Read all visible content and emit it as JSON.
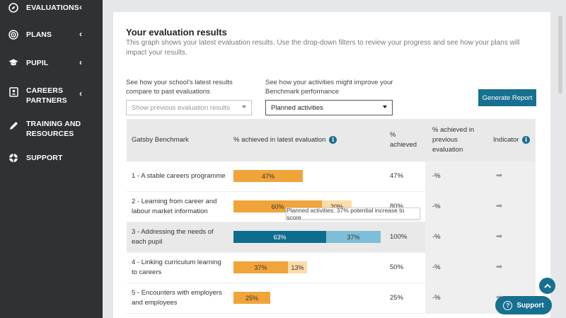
{
  "sidebar": {
    "items": [
      {
        "label": "EVALUATIONS",
        "icon": "compass-icon"
      },
      {
        "label": "PLANS",
        "icon": "target-icon"
      },
      {
        "label": "PUPIL",
        "icon": "graduation-cap-icon"
      },
      {
        "label_line1": "CAREERS",
        "label_line2": "PARTNERS",
        "icon": "id-card-icon"
      },
      {
        "label_line1": "TRAINING AND",
        "label_line2": "RESOURCES",
        "icon": "pencil-icon"
      },
      {
        "label": "SUPPORT",
        "icon": "lifebuoy-icon"
      }
    ],
    "chevron": "‹"
  },
  "main": {
    "title": "Your evaluation results",
    "description": "This graph shows your latest evaluation results. Use the drop-down filters to review your progress and see how your plans will impact your results.",
    "filter1": {
      "label_line1": "See how your school's latest results",
      "label_line2": "compare to past evaluations",
      "value": "Show previous evaluation results"
    },
    "filter2": {
      "label_line1": "See how your activities might improve your",
      "label_line2": "Benchmark performance",
      "value": "Planned activities"
    },
    "generate_button": "Generate Report"
  },
  "table": {
    "headers": {
      "benchmark": "Gatsby Benchmark",
      "latest": "% achieved in latest evaluation",
      "achieved_line1": "%",
      "achieved_line2": "achieved",
      "previous_line1": "% achieved in",
      "previous_line2": "previous",
      "previous_line3": "evaluation",
      "indicator": "Indicator"
    },
    "rows": [
      {
        "line1": "1 - A stable careers programme",
        "line2": "",
        "achieved": 47,
        "planned": 0,
        "achieved_label": "47%",
        "planned_label": "",
        "total": "47%",
        "previous": "-%",
        "indicator": "➡"
      },
      {
        "line1": "2 - Learning from career and",
        "line2": "labour market information",
        "achieved": 60,
        "planned": 20,
        "achieved_label": "60%",
        "planned_label": "20%",
        "total": "80%",
        "previous": "-%",
        "indicator": "➡"
      },
      {
        "line1": "3 - Addressing the needs of",
        "line2": "each pupil",
        "achieved": 63,
        "planned": 37,
        "achieved_label": "63%",
        "planned_label": "37%",
        "total": "100%",
        "previous": "-%",
        "indicator": "➡"
      },
      {
        "line1": "4 - Linking curriculum learning",
        "line2": "to careers",
        "achieved": 37,
        "planned": 13,
        "achieved_label": "37%",
        "planned_label": "13%",
        "total": "50%",
        "previous": "-%",
        "indicator": "➡"
      },
      {
        "line1": "5 - Encounters with employers",
        "line2": "and employees",
        "achieved": 25,
        "planned": 0,
        "achieved_label": "25%",
        "planned_label": "",
        "total": "25%",
        "previous": "-%",
        "indicator": "➡"
      }
    ],
    "tooltip": "Planned activities: 37% potential increase to score"
  },
  "support_button": "Support",
  "colors": {
    "sidebar": "#2f3133",
    "accent": "#17708f",
    "achieved": "#f0a43a",
    "planned": "#fbdcaa",
    "achieved_highlight": "#0e6c8f",
    "planned_highlight": "#7dbfd6"
  }
}
